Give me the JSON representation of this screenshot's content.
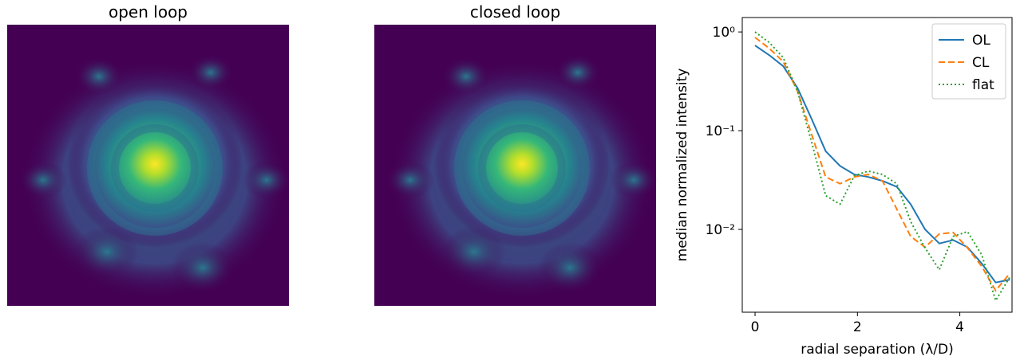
{
  "chart_data": [
    {
      "type": "image",
      "title": "open loop"
    },
    {
      "type": "image",
      "title": "closed loop"
    },
    {
      "type": "line",
      "x_label": "radial separation (λ/D)",
      "y_label": "median normalized intensity",
      "log_y": true,
      "legend": "upper right",
      "x": [
        0,
        0.28,
        0.55,
        0.83,
        1.11,
        1.38,
        1.66,
        1.94,
        2.21,
        2.49,
        2.77,
        3.04,
        3.32,
        3.6,
        3.87,
        4.15,
        4.43,
        4.7,
        4.98
      ],
      "xlim": [
        -0.25,
        5.02
      ],
      "xticks": [
        0,
        2,
        4
      ],
      "ylim": [
        0.00145,
        1.4
      ],
      "yticks": [
        {
          "value": 1,
          "label": "10⁰"
        },
        {
          "value": 0.1,
          "label": "10⁻¹"
        },
        {
          "value": 0.01,
          "label": "10⁻²"
        }
      ],
      "series": [
        {
          "name": "OL",
          "color": "#1f77b4",
          "dash": "solid",
          "values": [
            0.73,
            0.58,
            0.45,
            0.27,
            0.13,
            0.062,
            0.044,
            0.036,
            0.034,
            0.031,
            0.027,
            0.018,
            0.01,
            0.0072,
            0.0078,
            0.0066,
            0.0045,
            0.0029,
            0.0031
          ]
        },
        {
          "name": "CL",
          "color": "#ff7f0e",
          "dash": "dashed",
          "values": [
            0.88,
            0.68,
            0.5,
            0.25,
            0.09,
            0.034,
            0.029,
            0.034,
            0.036,
            0.031,
            0.016,
            0.0085,
            0.0066,
            0.009,
            0.0093,
            0.0065,
            0.0042,
            0.0024,
            0.0036
          ]
        },
        {
          "name": "flat",
          "color": "#2ca02c",
          "dash": "dotted",
          "values": [
            1.0,
            0.78,
            0.55,
            0.25,
            0.075,
            0.022,
            0.018,
            0.035,
            0.039,
            0.036,
            0.029,
            0.012,
            0.0065,
            0.0039,
            0.0085,
            0.0095,
            0.0055,
            0.0019,
            0.0033
          ]
        }
      ]
    }
  ]
}
